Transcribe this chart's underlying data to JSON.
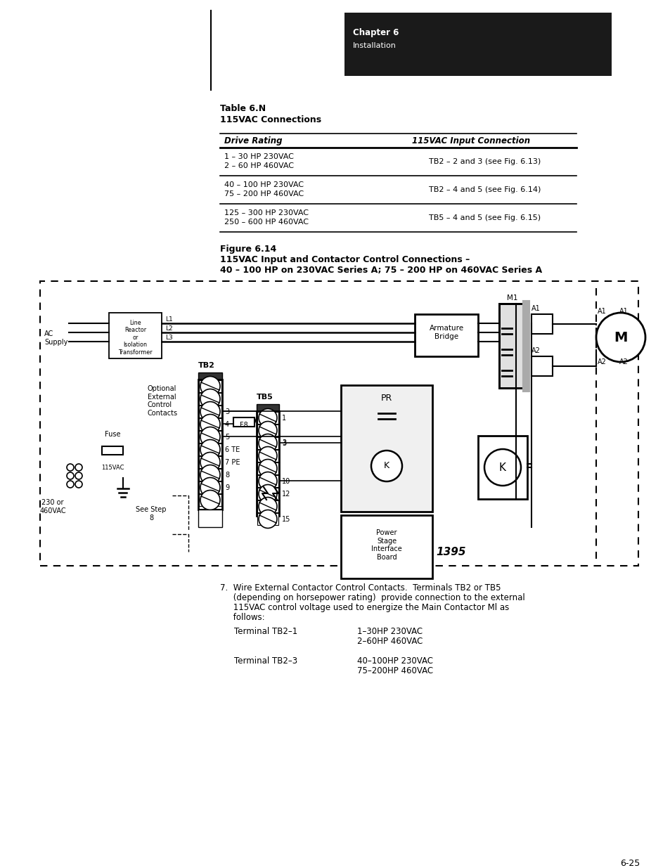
{
  "page_bg": "#ffffff",
  "header_box_color": "#1a1a1a",
  "header_text1": "Chapter 6",
  "header_text2": "Installation",
  "table_title1": "Table 6.N",
  "table_title2": "115VAC Connections",
  "table_col1_header": "Drive Rating",
  "table_col2_header": "115VAC Input Connection",
  "table_rows": [
    [
      "1 – 30 HP 230VAC\n2 – 60 HP 460VAC",
      "TB2 – 2 and 3 (see Fig. 6.13)"
    ],
    [
      "40 – 100 HP 230VAC\n75 – 200 HP 460VAC",
      "TB2 – 4 and 5 (see Fig. 6.14)"
    ],
    [
      "125 – 300 HP 230VAC\n250 – 600 HP 460VAC",
      "TB5 – 4 and 5 (see Fig. 6.15)"
    ]
  ],
  "fig_caption1": "Figure 6.14",
  "fig_caption2": "115VAC Input and Contactor Control Connections –",
  "fig_caption3": "40 – 100 HP on 230VAC Series A; 75 – 200 HP on 460VAC Series A",
  "footer_line1": "7.  Wire External Contactor Control Contacts.  Terminals TB2 or TB5",
  "footer_line2": "     (depending on horsepower rating)  provide connection to the external",
  "footer_line3": "     115VAC control voltage used to energize the Main Contactor Ml as",
  "footer_line4": "     follows:",
  "footer_term1_label": "Terminal TB2–1",
  "footer_term1_val1": "1–30HP 230VAC",
  "footer_term1_val2": "2–60HP 460VAC",
  "footer_term3_label": "Terminal TB2–3",
  "footer_term3_val1": "40–100HP 230VAC",
  "footer_term3_val2": "75–200HP 460VAC",
  "page_number": "6-25"
}
